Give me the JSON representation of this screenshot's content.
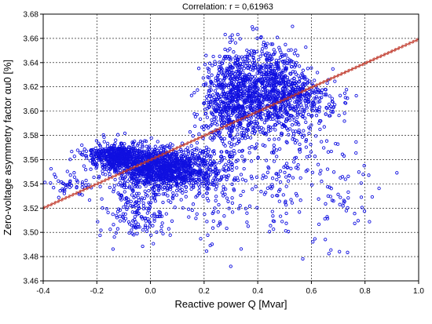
{
  "chart_data": {
    "type": "scatter",
    "title": "Correlation: r = 0,61963",
    "xlabel": "Reactive power Q [Mvar]",
    "ylabel": "Zero-voltage asymmetry factor αu0 [%]",
    "xlim": [
      -0.4,
      1.0
    ],
    "ylim": [
      3.46,
      3.68
    ],
    "grid": true,
    "x_ticks": [
      "-0.4",
      "-0.2",
      "0.0",
      "0.2",
      "0.4",
      "0.6",
      "0.8",
      "1.0"
    ],
    "y_ticks": [
      "3.46",
      "3.48",
      "3.50",
      "3.52",
      "3.54",
      "3.56",
      "3.58",
      "3.60",
      "3.62",
      "3.64",
      "3.66",
      "3.68"
    ],
    "regression": {
      "slope": 0.0995,
      "intercept": 3.5598,
      "x_range": [
        -0.4,
        1.0
      ]
    },
    "point_color": "#1010e0",
    "line_color": "#c0392b",
    "clusters": [
      {
        "cx": -0.12,
        "cy": 3.563,
        "sx": 0.055,
        "sy": 0.005,
        "n": 520
      },
      {
        "cx": 0.05,
        "cy": 3.552,
        "sx": 0.1,
        "sy": 0.009,
        "n": 1300
      },
      {
        "cx": -0.05,
        "cy": 3.515,
        "sx": 0.06,
        "sy": 0.012,
        "n": 160
      },
      {
        "cx": -0.3,
        "cy": 3.54,
        "sx": 0.04,
        "sy": 0.006,
        "n": 50
      },
      {
        "cx": 0.3,
        "cy": 3.61,
        "sx": 0.055,
        "sy": 0.02,
        "n": 700
      },
      {
        "cx": 0.45,
        "cy": 3.62,
        "sx": 0.06,
        "sy": 0.018,
        "n": 650
      },
      {
        "cx": 0.58,
        "cy": 3.61,
        "sx": 0.07,
        "sy": 0.01,
        "n": 220
      },
      {
        "cx": 0.5,
        "cy": 3.565,
        "sx": 0.07,
        "sy": 0.03,
        "n": 180
      },
      {
        "cx": 0.25,
        "cy": 3.535,
        "sx": 0.06,
        "sy": 0.025,
        "n": 120
      },
      {
        "cx": 0.7,
        "cy": 3.53,
        "sx": 0.08,
        "sy": 0.025,
        "n": 70
      }
    ]
  }
}
